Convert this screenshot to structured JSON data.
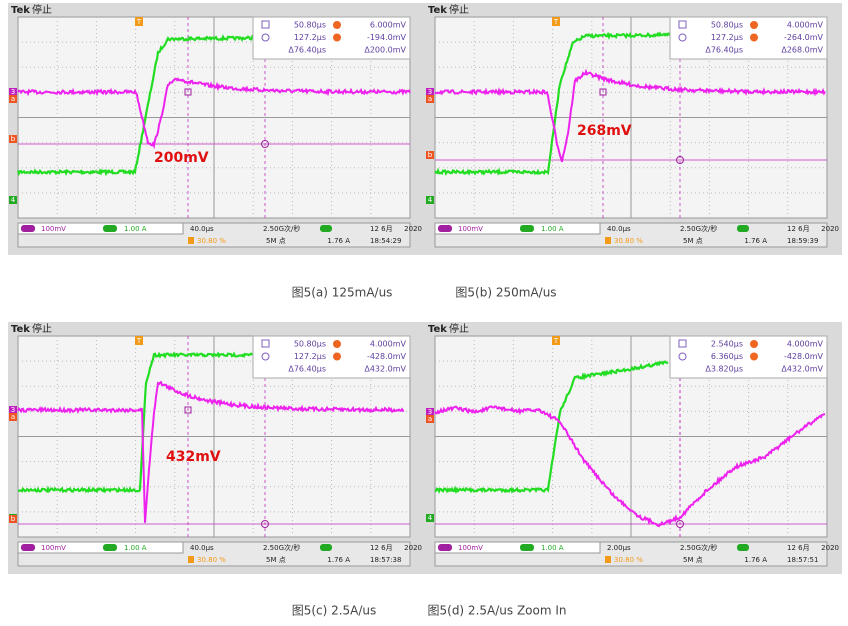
{
  "common": {
    "brand": "Tek",
    "state": "停止",
    "ch3_scale": "100mV",
    "ch4_scale": "1.00 A",
    "trigger_pos": "30.80 %",
    "sample_rate": "2.50G次/秒",
    "record": "5M 点",
    "trigger_level": "1.76 A",
    "date": "12 6月",
    "year": "2020",
    "ch3": "3",
    "ch4": "4",
    "cursor_a": "a",
    "cursor_b": "b",
    "trigger": "T"
  },
  "panels": [
    {
      "readout": [
        "50.80μs",
        "6.000mV",
        "127.2μs",
        "-194.0mV",
        "Δ76.40μs",
        "Δ200.0mV"
      ],
      "annotation": "200mV",
      "timebase": "40.0μs",
      "time": "18:54:29"
    },
    {
      "readout": [
        "50.80μs",
        "4.000mV",
        "127.2μs",
        "-264.0mV",
        "Δ76.40μs",
        "Δ268.0mV"
      ],
      "annotation": "268mV",
      "timebase": "40.0μs",
      "time": "18:59:39"
    },
    {
      "readout": [
        "50.80μs",
        "4.000mV",
        "127.2μs",
        "-428.0mV",
        "Δ76.40μs",
        "Δ432.0mV"
      ],
      "annotation": "432mV",
      "timebase": "40.0μs",
      "time": "18:57:38"
    },
    {
      "readout": [
        "2.540μs",
        "4.000mV",
        "6.360μs",
        "-428.0mV",
        "Δ3.820μs",
        "Δ432.0mV"
      ],
      "timebase": "2.00μs",
      "time": "18:57:51"
    }
  ],
  "captions": [
    "图5(a) 125mA/us",
    "图5(b) 250mA/us",
    "图5(c) 2.5A/us",
    "图5(d) 2.5A/us Zoom In"
  ]
}
